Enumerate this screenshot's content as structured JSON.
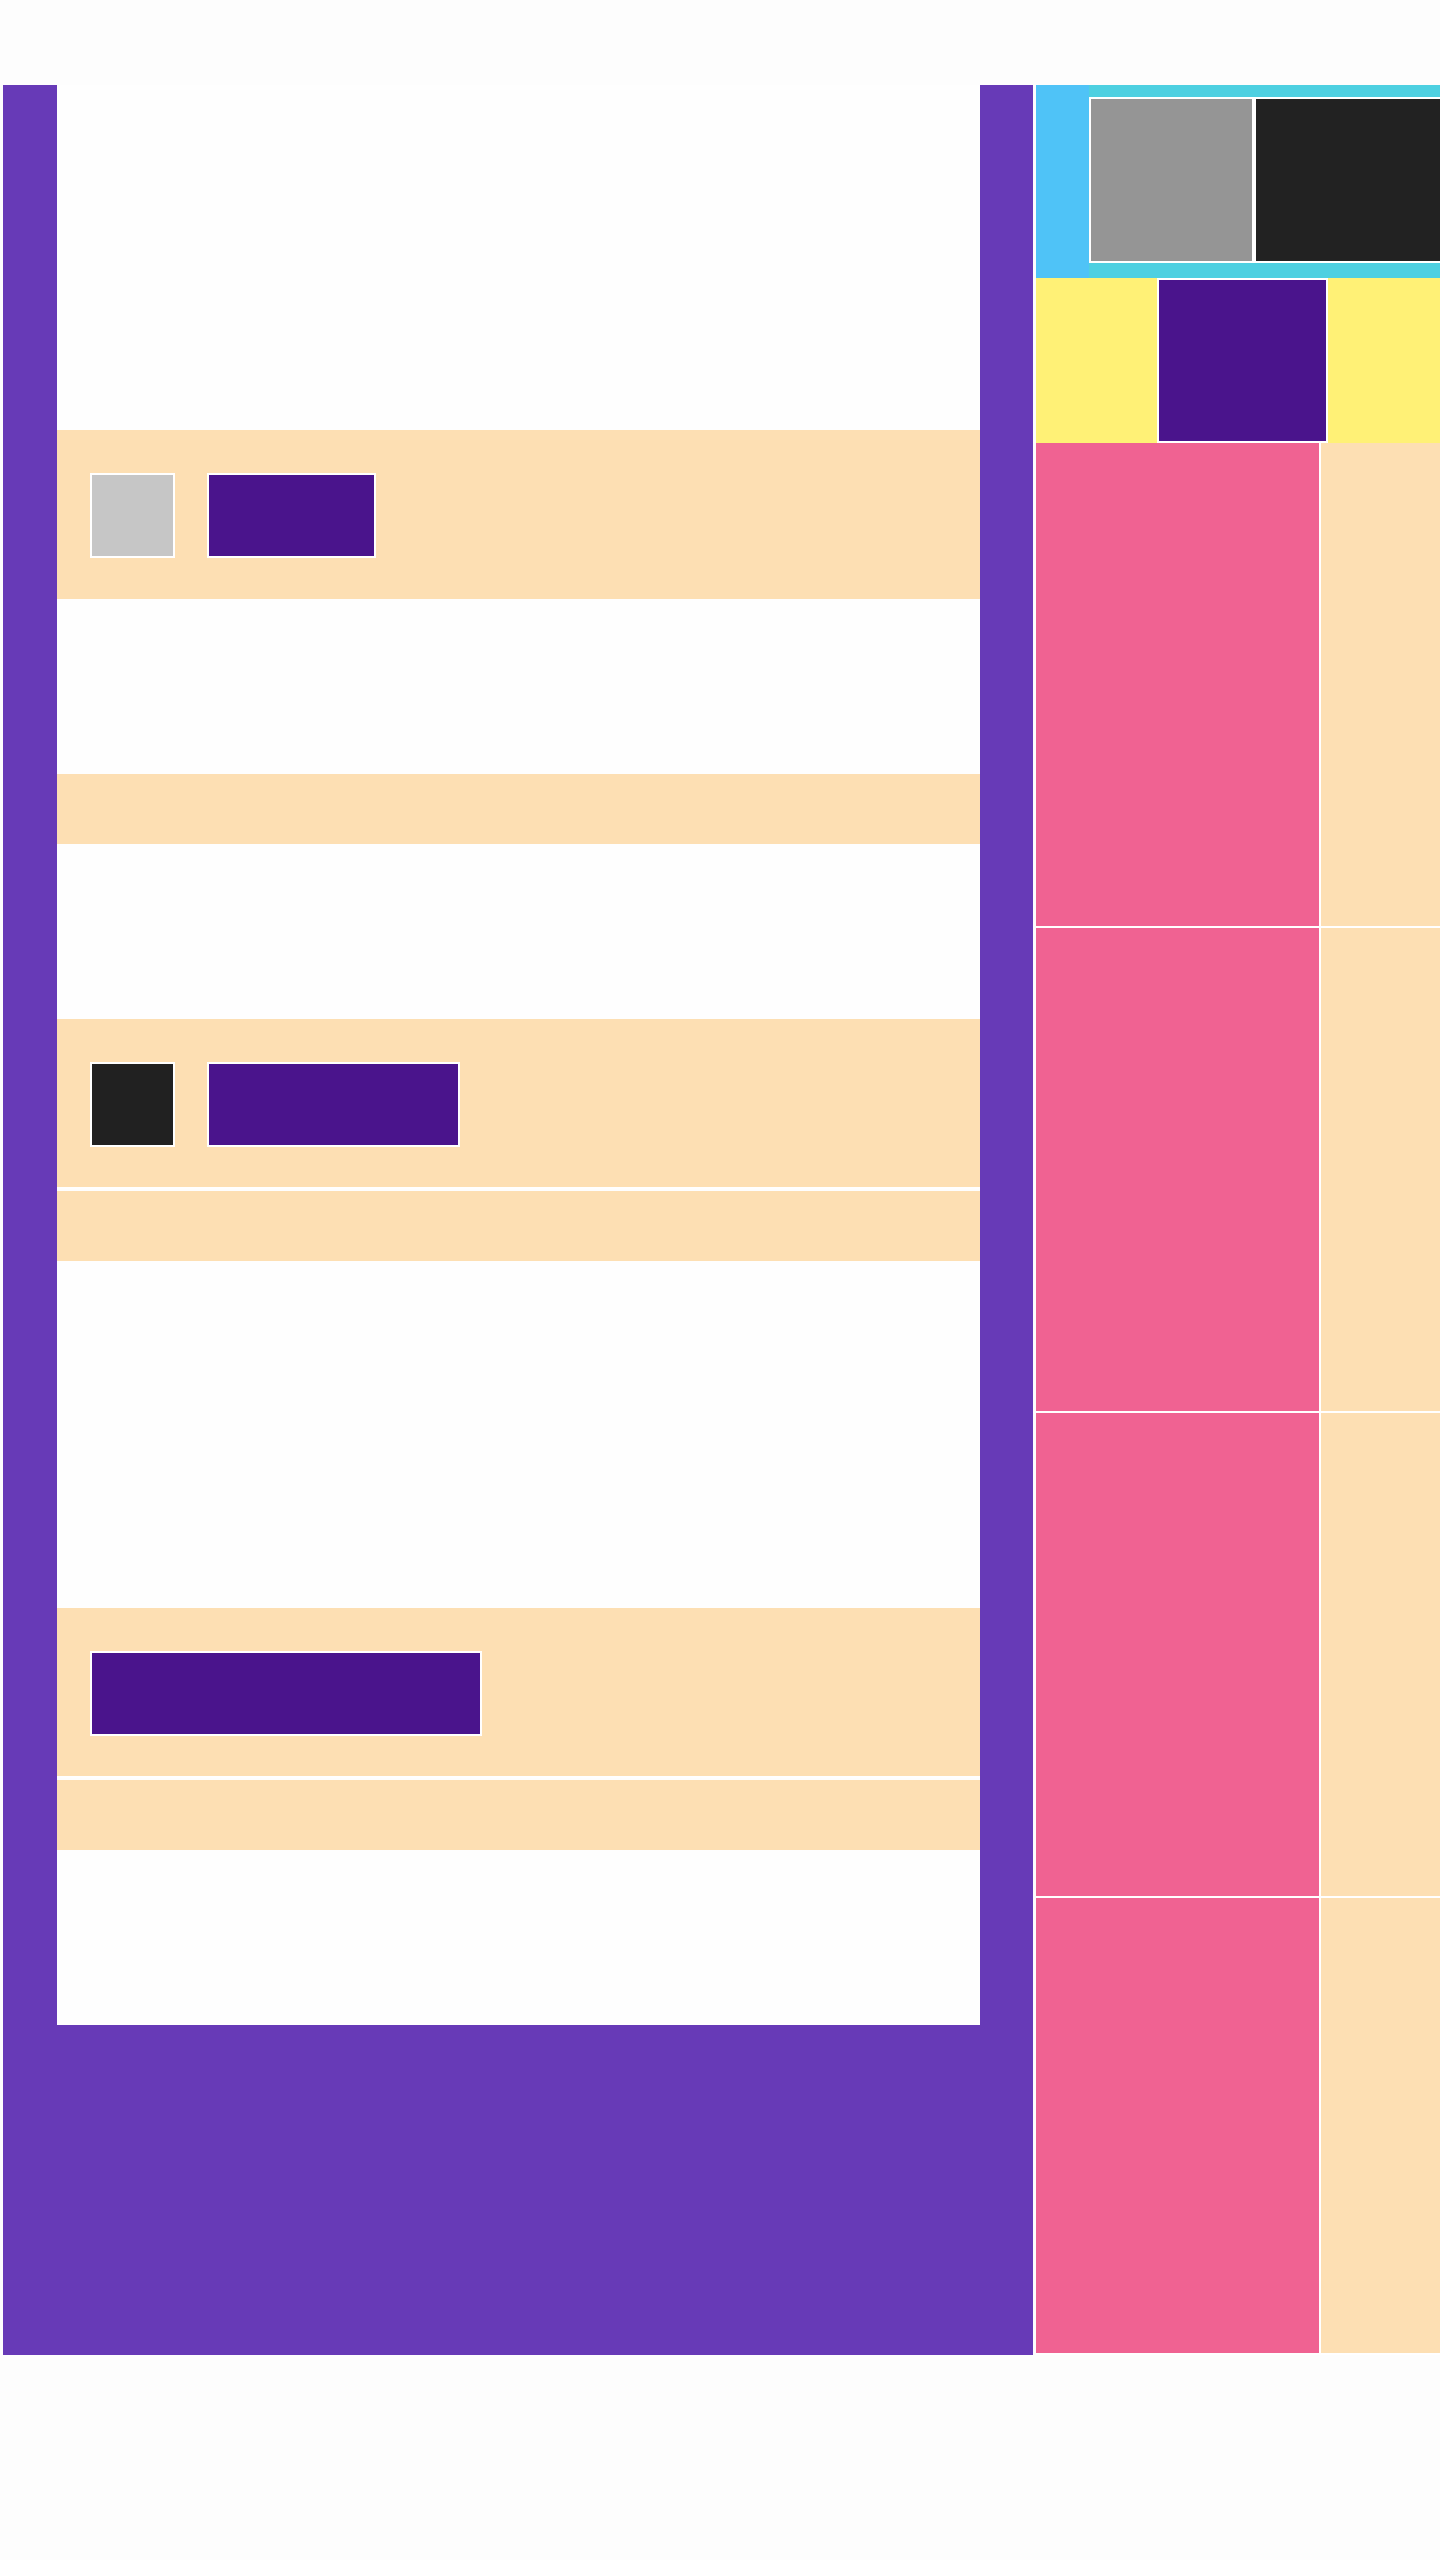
{
  "colors": {
    "page_background": "#fdfdfd",
    "frame_purple": "#673ab7",
    "content_white": "#fefefe",
    "row_peach": "#fddfb3",
    "label_indigo": "#4a148c",
    "thumb_light_gray": "#c6c6c6",
    "thumb_dark": "#212121",
    "topbar_sky": "#4fc3f7",
    "topbar_cyan": "#4dd0e1",
    "tile_gray": "#959595",
    "tile_dark": "#222222",
    "strip_yellow": "#fff176",
    "card_pink": "#f06292"
  },
  "main": {
    "sections": [
      {
        "has_thumbnail": true,
        "thumbnail_tone": "light"
      },
      {
        "has_thumbnail": true,
        "thumbnail_tone": "dark"
      },
      {
        "has_thumbnail": false
      }
    ]
  },
  "side_panel": {
    "cards_count": 4
  }
}
